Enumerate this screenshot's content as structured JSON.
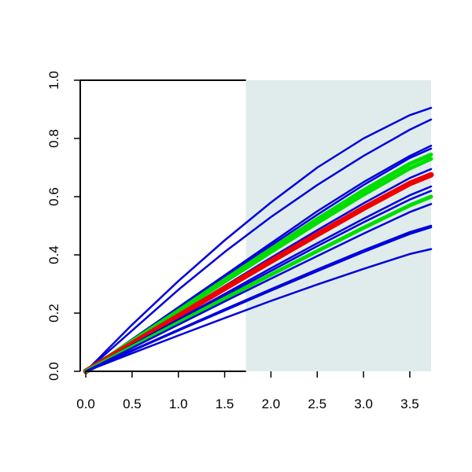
{
  "chart_data": {
    "type": "line",
    "title": "",
    "xlabel": "",
    "ylabel": "",
    "xlim": [
      -0.06,
      3.73
    ],
    "ylim": [
      0.0,
      1.0
    ],
    "x_ticks": [
      0.0,
      0.5,
      1.0,
      1.5,
      2.0,
      2.5,
      3.0,
      3.5
    ],
    "x_tick_labels": [
      "0.0",
      "0.5",
      "1.0",
      "1.5",
      "2.0",
      "2.5",
      "3.0",
      "3.5"
    ],
    "y_ticks": [
      0.0,
      0.2,
      0.4,
      0.6,
      0.8,
      1.0
    ],
    "y_tick_labels": [
      "0.0",
      "0.2",
      "0.4",
      "0.6",
      "0.8",
      "1.0"
    ],
    "shaded_region": {
      "x_from": 1.73,
      "x_to": 3.73,
      "color": "#e0ecec"
    },
    "legend": "none",
    "grid": false,
    "series": [
      {
        "color": "#0000dd",
        "x": [
          0.0,
          0.5,
          1.0,
          1.5,
          2.0,
          2.5,
          3.0,
          3.5,
          3.73
        ],
        "y": [
          0.0,
          0.16,
          0.31,
          0.45,
          0.58,
          0.7,
          0.8,
          0.88,
          0.905
        ]
      },
      {
        "color": "#0000dd",
        "x": [
          0.0,
          0.5,
          1.0,
          1.5,
          2.0,
          2.5,
          3.0,
          3.5,
          3.73
        ],
        "y": [
          0.0,
          0.14,
          0.28,
          0.41,
          0.53,
          0.64,
          0.74,
          0.83,
          0.865
        ]
      },
      {
        "color": "#0000dd",
        "x": [
          0.0,
          0.5,
          1.0,
          1.5,
          2.0,
          2.5,
          3.0,
          3.5,
          3.73
        ],
        "y": [
          0.0,
          0.11,
          0.22,
          0.33,
          0.44,
          0.55,
          0.65,
          0.74,
          0.775
        ]
      },
      {
        "color": "#0000dd",
        "x": [
          0.0,
          0.5,
          1.0,
          1.5,
          2.0,
          2.5,
          3.0,
          3.5,
          3.73
        ],
        "y": [
          0.0,
          0.108,
          0.215,
          0.325,
          0.432,
          0.538,
          0.64,
          0.733,
          0.765
        ]
      },
      {
        "color": "#00dd00",
        "x": [
          0.0,
          0.5,
          1.0,
          1.5,
          2.0,
          2.5,
          3.0,
          3.5,
          3.73
        ],
        "y": [
          0.0,
          0.104,
          0.208,
          0.315,
          0.42,
          0.523,
          0.622,
          0.713,
          0.745
        ]
      },
      {
        "color": "#00dd00",
        "x": [
          0.0,
          0.5,
          1.0,
          1.5,
          2.0,
          2.5,
          3.0,
          3.5,
          3.73
        ],
        "y": [
          0.0,
          0.102,
          0.204,
          0.308,
          0.41,
          0.51,
          0.607,
          0.697,
          0.73
        ]
      },
      {
        "color": "#0000dd",
        "x": [
          0.0,
          0.5,
          1.0,
          1.5,
          2.0,
          2.5,
          3.0,
          3.5,
          3.73
        ],
        "y": [
          0.0,
          0.098,
          0.195,
          0.293,
          0.39,
          0.485,
          0.577,
          0.664,
          0.695
        ]
      },
      {
        "color": "#ee0000",
        "x": [
          0.0,
          0.5,
          1.0,
          1.5,
          2.0,
          2.5,
          3.0,
          3.5,
          3.73
        ],
        "y": [
          0.0,
          0.095,
          0.19,
          0.285,
          0.378,
          0.47,
          0.56,
          0.645,
          0.675
        ]
      },
      {
        "color": "#0000dd",
        "x": [
          0.0,
          0.5,
          1.0,
          1.5,
          2.0,
          2.5,
          3.0,
          3.5,
          3.73
        ],
        "y": [
          0.0,
          0.09,
          0.178,
          0.266,
          0.354,
          0.44,
          0.524,
          0.605,
          0.635
        ]
      },
      {
        "color": "#0000dd",
        "x": [
          0.0,
          0.5,
          1.0,
          1.5,
          2.0,
          2.5,
          3.0,
          3.5,
          3.73
        ],
        "y": [
          0.0,
          0.087,
          0.173,
          0.26,
          0.345,
          0.43,
          0.512,
          0.59,
          0.62
        ]
      },
      {
        "color": "#00dd00",
        "x": [
          0.0,
          0.5,
          1.0,
          1.5,
          2.0,
          2.5,
          3.0,
          3.5,
          3.73
        ],
        "y": [
          0.0,
          0.084,
          0.167,
          0.25,
          0.332,
          0.413,
          0.493,
          0.57,
          0.6
        ]
      },
      {
        "color": "#0000dd",
        "x": [
          0.0,
          0.5,
          1.0,
          1.5,
          2.0,
          2.5,
          3.0,
          3.5,
          3.73
        ],
        "y": [
          0.0,
          0.08,
          0.16,
          0.24,
          0.318,
          0.396,
          0.473,
          0.547,
          0.575
        ]
      },
      {
        "color": "#0000dd",
        "x": [
          0.0,
          0.5,
          1.0,
          1.5,
          2.0,
          2.5,
          3.0,
          3.5,
          3.73
        ],
        "y": [
          0.0,
          0.072,
          0.143,
          0.213,
          0.282,
          0.35,
          0.416,
          0.478,
          0.5
        ]
      },
      {
        "color": "#0000dd",
        "x": [
          0.0,
          0.5,
          1.0,
          1.5,
          2.0,
          2.5,
          3.0,
          3.5,
          3.73
        ],
        "y": [
          0.0,
          0.07,
          0.14,
          0.209,
          0.277,
          0.344,
          0.41,
          0.472,
          0.495
        ]
      },
      {
        "color": "#0000dd",
        "x": [
          0.0,
          0.5,
          1.0,
          1.5,
          2.0,
          2.5,
          3.0,
          3.5,
          3.73
        ],
        "y": [
          0.0,
          0.062,
          0.123,
          0.183,
          0.242,
          0.298,
          0.352,
          0.403,
          0.42
        ]
      }
    ]
  }
}
